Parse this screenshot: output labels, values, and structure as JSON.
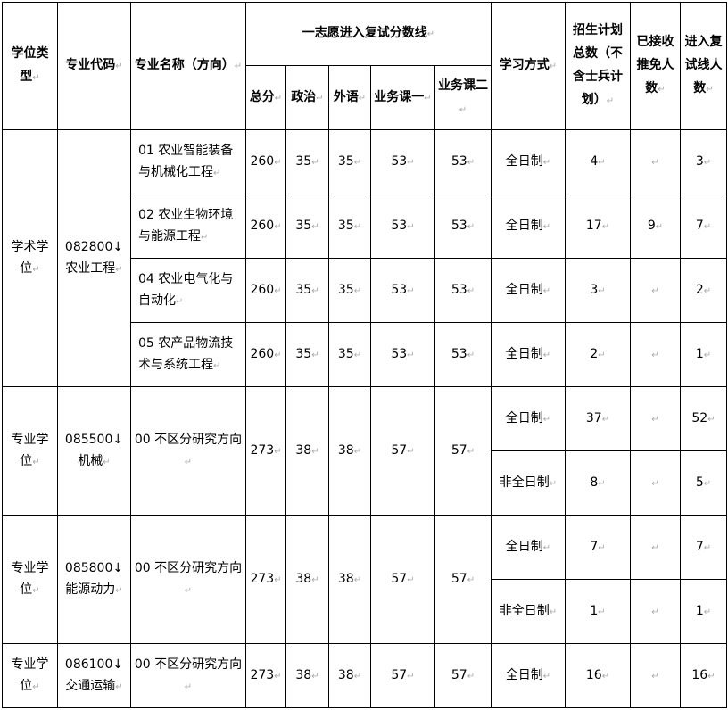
{
  "header": {
    "degree_type": "学位类型",
    "major_code": "专业代码",
    "major_name": "专业名称（方向）",
    "score_line": "一志愿进入复试分数线",
    "total": "总分",
    "politics": "政治",
    "foreign_lang": "外语",
    "course1": "业务课一",
    "course2": "业务课二",
    "study_mode": "学习方式",
    "plan": "招生计划总数（不含士兵计划）",
    "exempt": "已接收推免人数",
    "retest": "进入复试线人数"
  },
  "groups": [
    {
      "degree": "学术学位",
      "code": "082800",
      "code_name": "农业工程",
      "majors": [
        {
          "name": "01 农业智能装备与机械化工程",
          "scores": [
            "260",
            "35",
            "35",
            "53",
            "53"
          ],
          "modes": [
            {
              "mode": "全日制",
              "plan": "4",
              "exempt": "",
              "retest": "3"
            }
          ]
        },
        {
          "name": "02 农业生物环境与能源工程",
          "scores": [
            "260",
            "35",
            "35",
            "53",
            "53"
          ],
          "modes": [
            {
              "mode": "全日制",
              "plan": "17",
              "exempt": "9",
              "retest": "7"
            }
          ]
        },
        {
          "name": "04 农业电气化与自动化",
          "scores": [
            "260",
            "35",
            "35",
            "53",
            "53"
          ],
          "modes": [
            {
              "mode": "全日制",
              "plan": "3",
              "exempt": "",
              "retest": "2"
            }
          ]
        },
        {
          "name": "05 农产品物流技术与系统工程",
          "scores": [
            "260",
            "35",
            "35",
            "53",
            "53"
          ],
          "modes": [
            {
              "mode": "全日制",
              "plan": "2",
              "exempt": "",
              "retest": "1"
            }
          ]
        }
      ]
    },
    {
      "degree": "专业学位",
      "code": "085500",
      "code_name": "机械",
      "majors": [
        {
          "name": "00 不区分研究方向",
          "scores": [
            "273",
            "38",
            "38",
            "57",
            "57"
          ],
          "modes": [
            {
              "mode": "全日制",
              "plan": "37",
              "exempt": "",
              "retest": "52"
            },
            {
              "mode": "非全日制",
              "plan": "8",
              "exempt": "",
              "retest": "5"
            }
          ]
        }
      ]
    },
    {
      "degree": "专业学位",
      "code": "085800",
      "code_name": "能源动力",
      "majors": [
        {
          "name": "00 不区分研究方向",
          "scores": [
            "273",
            "38",
            "38",
            "57",
            "57"
          ],
          "modes": [
            {
              "mode": "全日制",
              "plan": "7",
              "exempt": "",
              "retest": "7"
            },
            {
              "mode": "非全日制",
              "plan": "1",
              "exempt": "",
              "retest": "1"
            }
          ]
        }
      ]
    },
    {
      "degree": "专业学位",
      "code": "086100",
      "code_name": "交通运输",
      "majors": [
        {
          "name": "00 不区分研究方向",
          "scores": [
            "273",
            "38",
            "38",
            "57",
            "57"
          ],
          "modes": [
            {
              "mode": "全日制",
              "plan": "16",
              "exempt": "",
              "retest": "16"
            }
          ]
        }
      ]
    }
  ]
}
